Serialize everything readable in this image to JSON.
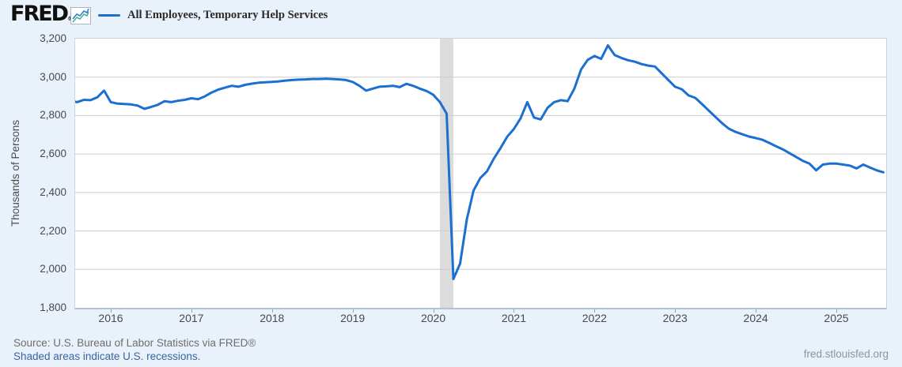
{
  "header": {
    "logo_text": "FRED",
    "logo_registered": "®",
    "legend_label": "All Employees, Temporary Help Services"
  },
  "footer": {
    "source_line": "Source: U.S. Bureau of Labor Statistics via FRED®",
    "recession_note": "Shaded areas indicate U.S. recessions.",
    "site_link": "fred.stlouisfed.org"
  },
  "colors": {
    "line": "#1b6fd1",
    "recession_band": "#dcdcdc",
    "gridline": "#cccccc",
    "page_background": "#e9f1fa",
    "logo_icon_blue": "#3a7fc1",
    "logo_icon_teal": "#4caf9e"
  },
  "chart_data": {
    "type": "line",
    "title": "All Employees, Temporary Help Services",
    "ylabel": "Thousands of Persons",
    "xlabel": "",
    "ylim": [
      1800,
      3200
    ],
    "ytick_interval": 200,
    "yticks": [
      "3,200",
      "3,000",
      "2,800",
      "2,600",
      "2,400",
      "2,200",
      "2,000",
      "1,800"
    ],
    "xticks": [
      "2016",
      "2017",
      "2018",
      "2019",
      "2020",
      "2021",
      "2022",
      "2023",
      "2024",
      "2025"
    ],
    "grid": true,
    "legend_position": "top-left",
    "frequency": "monthly",
    "recession_band": {
      "start": "2020-02",
      "end": "2020-04"
    },
    "series": [
      {
        "name": "All Employees, Temporary Help Services",
        "start": "2015-07",
        "end": "2025-08",
        "values": [
          2878,
          2870,
          2882,
          2880,
          2895,
          2930,
          2870,
          2862,
          2860,
          2858,
          2852,
          2835,
          2845,
          2856,
          2875,
          2870,
          2877,
          2882,
          2890,
          2885,
          2900,
          2920,
          2935,
          2945,
          2955,
          2950,
          2960,
          2966,
          2971,
          2973,
          2975,
          2978,
          2982,
          2985,
          2987,
          2988,
          2990,
          2990,
          2992,
          2990,
          2988,
          2985,
          2975,
          2955,
          2930,
          2940,
          2950,
          2952,
          2955,
          2948,
          2965,
          2955,
          2940,
          2928,
          2908,
          2870,
          2810,
          1950,
          2030,
          2260,
          2410,
          2475,
          2510,
          2575,
          2630,
          2690,
          2730,
          2785,
          2870,
          2790,
          2780,
          2840,
          2870,
          2880,
          2875,
          2940,
          3040,
          3090,
          3110,
          3095,
          3165,
          3115,
          3100,
          3088,
          3080,
          3068,
          3060,
          3055,
          3020,
          2985,
          2950,
          2937,
          2905,
          2892,
          2860,
          2826,
          2793,
          2760,
          2732,
          2715,
          2703,
          2691,
          2683,
          2674,
          2658,
          2641,
          2625,
          2605,
          2585,
          2565,
          2550,
          2515,
          2545,
          2550,
          2550,
          2545,
          2540,
          2525,
          2545,
          2530,
          2515,
          2505
        ]
      }
    ]
  }
}
